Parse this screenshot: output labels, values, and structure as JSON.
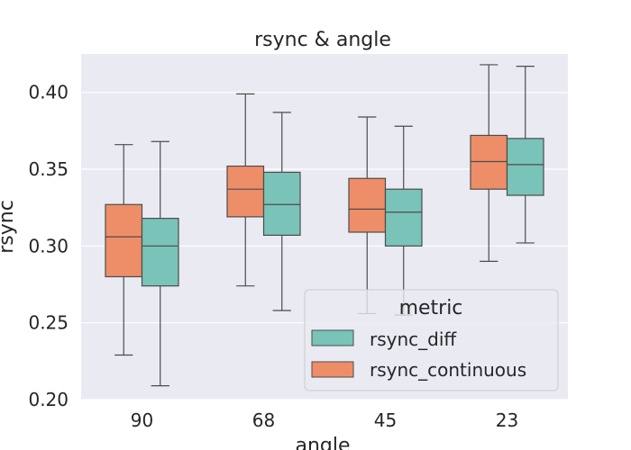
{
  "chart_data": {
    "type": "box",
    "title": "rsync & angle",
    "xlabel": "angle",
    "ylabel": "rsync",
    "categories": [
      "90",
      "68",
      "45",
      "23"
    ],
    "ylim": [
      0.2,
      0.425
    ],
    "yticks": [
      "0.20",
      "0.25",
      "0.30",
      "0.35",
      "0.40"
    ],
    "grid": true,
    "legend": {
      "title": "metric",
      "placement": "lower-right",
      "entries": [
        "rsync_diff",
        "rsync_continuous"
      ]
    },
    "series": [
      {
        "name": "rsync_continuous",
        "color": "#EE8E69",
        "boxes": [
          {
            "whislo": 0.229,
            "q1": 0.28,
            "med": 0.306,
            "q3": 0.327,
            "whishi": 0.366
          },
          {
            "whislo": 0.274,
            "q1": 0.319,
            "med": 0.337,
            "q3": 0.352,
            "whishi": 0.399
          },
          {
            "whislo": 0.256,
            "q1": 0.309,
            "med": 0.324,
            "q3": 0.344,
            "whishi": 0.384
          },
          {
            "whislo": 0.29,
            "q1": 0.337,
            "med": 0.355,
            "q3": 0.372,
            "whishi": 0.418
          }
        ]
      },
      {
        "name": "rsync_diff",
        "color": "#79C3B8",
        "boxes": [
          {
            "whislo": 0.209,
            "q1": 0.274,
            "med": 0.3,
            "q3": 0.318,
            "whishi": 0.368
          },
          {
            "whislo": 0.258,
            "q1": 0.307,
            "med": 0.327,
            "q3": 0.348,
            "whishi": 0.387
          },
          {
            "whislo": 0.255,
            "q1": 0.3,
            "med": 0.322,
            "q3": 0.337,
            "whishi": 0.378
          },
          {
            "whislo": 0.302,
            "q1": 0.333,
            "med": 0.353,
            "q3": 0.37,
            "whishi": 0.417
          }
        ]
      }
    ]
  }
}
